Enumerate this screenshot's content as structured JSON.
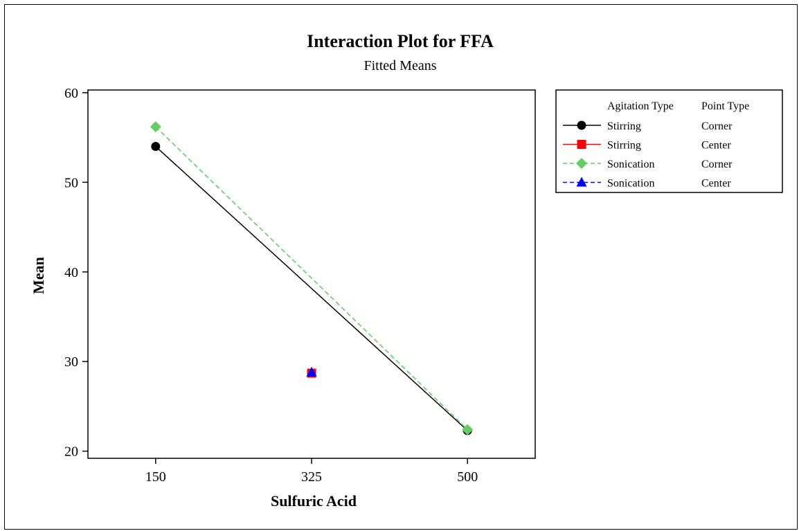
{
  "chart_data": {
    "type": "line",
    "title": "Interaction Plot for FFA",
    "subtitle": "Fitted Means",
    "xlabel": "Sulfuric Acid",
    "ylabel": "Mean",
    "x_ticks": [
      "150",
      "325",
      "500"
    ],
    "x_tick_values": [
      150,
      325,
      500
    ],
    "y_ticks": [
      "20",
      "30",
      "40",
      "50",
      "60"
    ],
    "y_tick_values": [
      20,
      30,
      40,
      50,
      60
    ],
    "xlim": [
      74,
      576
    ],
    "ylim": [
      19.2,
      60.3
    ],
    "grid": false,
    "legend_placement": "right",
    "legend_headers": [
      "Agitation Type",
      "Point Type"
    ],
    "series": [
      {
        "name": "Stirring",
        "point_type": "Corner",
        "color": "#000000",
        "marker": "circle",
        "dash": "solid",
        "x": [
          150,
          500
        ],
        "y": [
          54.0,
          22.3
        ]
      },
      {
        "name": "Stirring",
        "point_type": "Center",
        "color": "#ff0000",
        "marker": "square",
        "dash": "solid",
        "x": [
          325
        ],
        "y": [
          28.7
        ]
      },
      {
        "name": "Sonication",
        "point_type": "Corner",
        "color": "#66cc66",
        "marker": "diamond",
        "dash": "dashed",
        "x": [
          150,
          500
        ],
        "y": [
          56.2,
          22.4
        ]
      },
      {
        "name": "Sonication",
        "point_type": "Center",
        "color": "#0000ff",
        "marker": "triangle",
        "dash": "dashed",
        "x": [
          325
        ],
        "y": [
          28.8
        ]
      }
    ]
  }
}
